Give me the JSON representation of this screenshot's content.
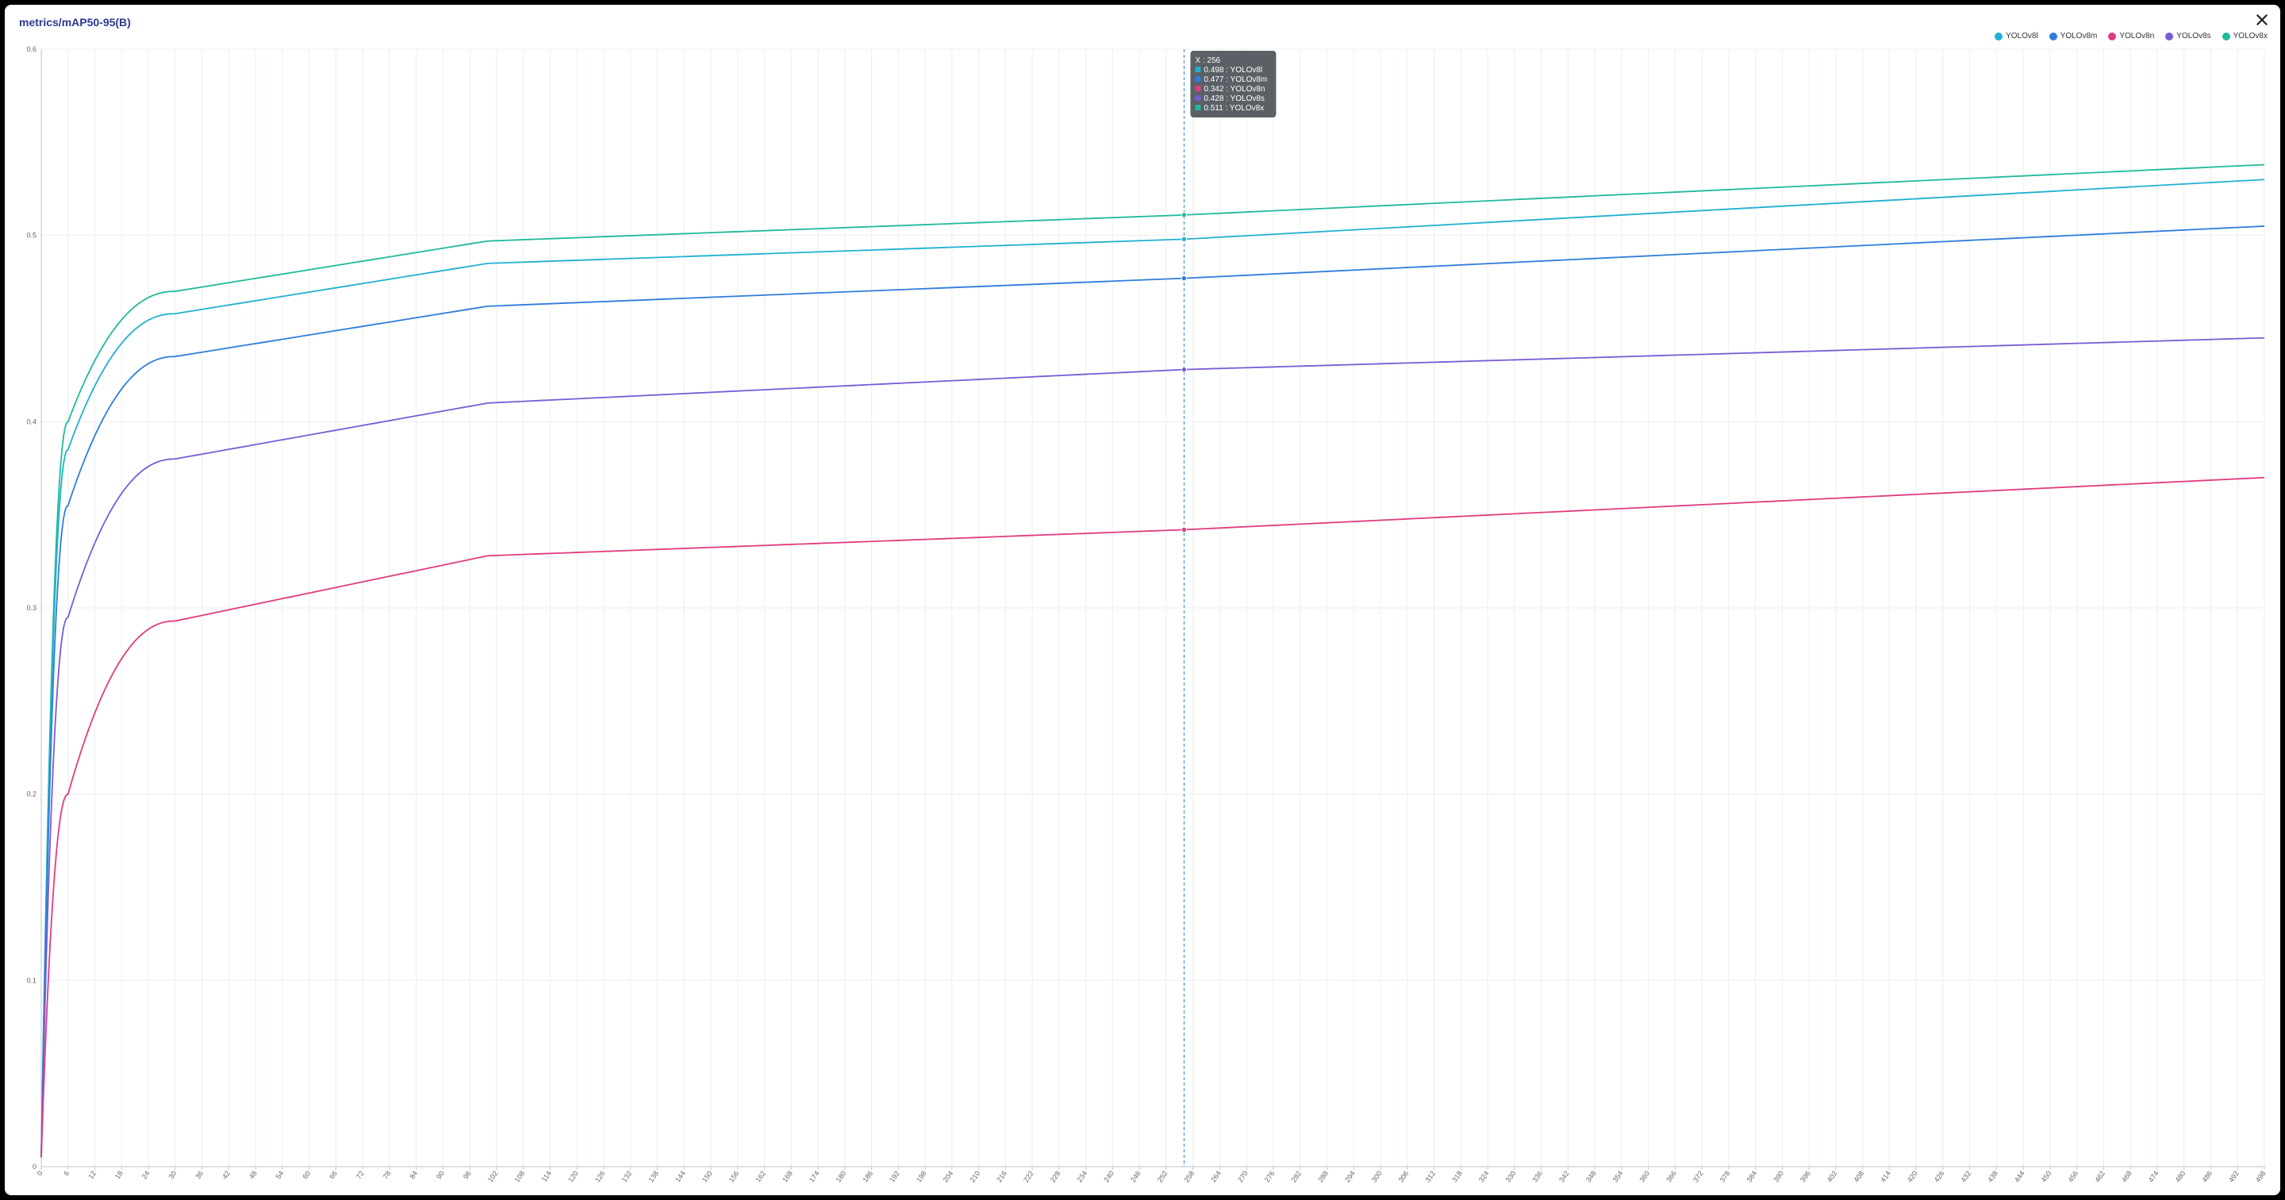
{
  "title": "metrics/mAP50-95(B)",
  "close_icon": "×",
  "chart": {
    "type": "line",
    "background_color": "#ffffff",
    "grid_color": "#eceef0",
    "axis_color": "#bfc4cc",
    "tick_font_size": 9,
    "tick_color": "#666666",
    "line_width": 1.8,
    "xlim": [
      0,
      498
    ],
    "ylim": [
      0,
      0.6
    ],
    "xtick_step": 6,
    "ytick_step": 0.1,
    "x_major_grid_step": 6,
    "cursor": {
      "x": 256,
      "line_color": "#2f7ddb",
      "dash": "4 3"
    },
    "tooltip": {
      "bg": "#5b6066",
      "text_color": "#ffffff",
      "header": "X : 256",
      "rows": [
        {
          "swatch": "#21b0d1",
          "text": "0.498 : YOLOv8l"
        },
        {
          "swatch": "#2f7ddb",
          "text": "0.477 : YOLOv8m"
        },
        {
          "swatch": "#e23b80",
          "text": "0.342 : YOLOv8n"
        },
        {
          "swatch": "#7a5bd7",
          "text": "0.428 : YOLOv8s"
        },
        {
          "swatch": "#1fba9b",
          "text": "0.511 : YOLOv8x"
        }
      ]
    },
    "legend": [
      {
        "label": "YOLOv8l",
        "color": "#21b0d1"
      },
      {
        "label": "YOLOv8m",
        "color": "#2f7ddb"
      },
      {
        "label": "YOLOv8n",
        "color": "#e23b80"
      },
      {
        "label": "YOLOv8s",
        "color": "#7a5bd7"
      },
      {
        "label": "YOLOv8x",
        "color": "#1fba9b"
      }
    ],
    "series": [
      {
        "name": "YOLOv8x",
        "color": "#1fba9b",
        "y_start": 0.005,
        "y_at_6": 0.4,
        "y_at_30": 0.47,
        "y_at_100": 0.497,
        "y_at_256": 0.511,
        "y_end": 0.538
      },
      {
        "name": "YOLOv8l",
        "color": "#21b0d1",
        "y_start": 0.005,
        "y_at_6": 0.385,
        "y_at_30": 0.458,
        "y_at_100": 0.485,
        "y_at_256": 0.498,
        "y_end": 0.53
      },
      {
        "name": "YOLOv8m",
        "color": "#2f7ddb",
        "y_start": 0.005,
        "y_at_6": 0.355,
        "y_at_30": 0.435,
        "y_at_100": 0.462,
        "y_at_256": 0.477,
        "y_end": 0.505
      },
      {
        "name": "YOLOv8s",
        "color": "#7a5bd7",
        "y_start": 0.005,
        "y_at_6": 0.295,
        "y_at_30": 0.38,
        "y_at_100": 0.41,
        "y_at_256": 0.428,
        "y_end": 0.445
      },
      {
        "name": "YOLOv8n",
        "color": "#e23b80",
        "y_start": 0.005,
        "y_at_6": 0.2,
        "y_at_30": 0.293,
        "y_at_100": 0.328,
        "y_at_256": 0.342,
        "y_end": 0.37
      }
    ]
  }
}
